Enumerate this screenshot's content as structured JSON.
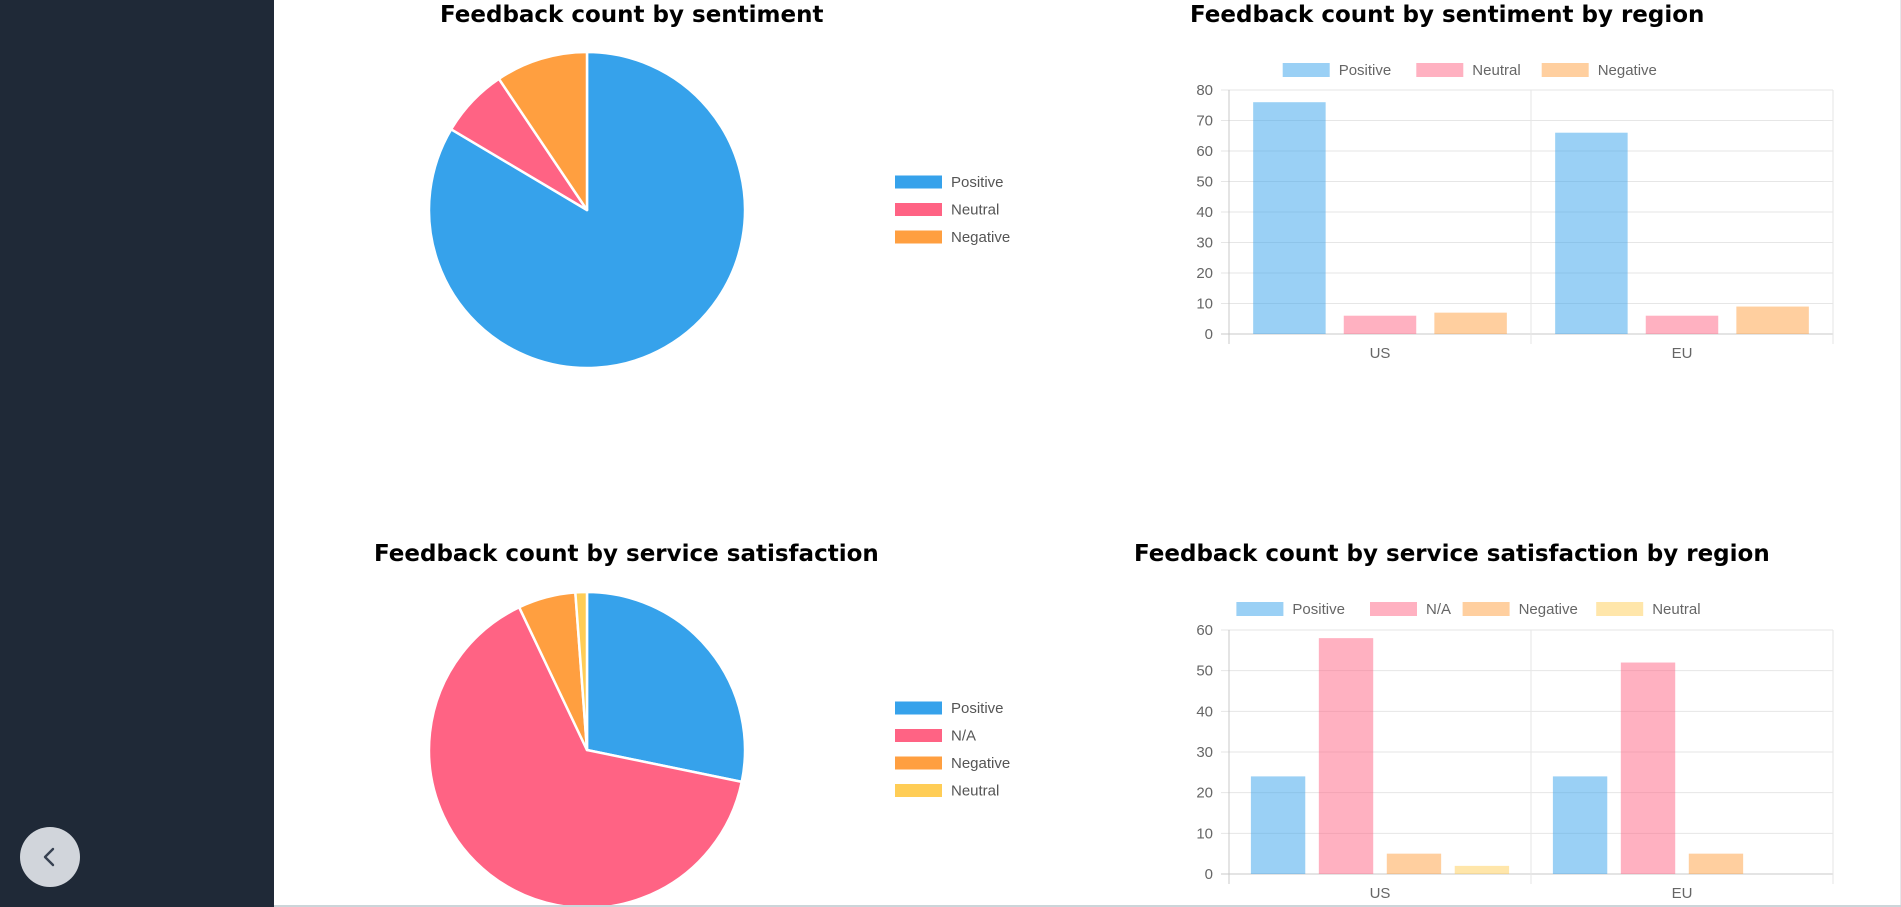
{
  "sidebar": {
    "collapse_icon": "chevron-left-icon"
  },
  "colors": {
    "blue": "#36a2eb",
    "pink": "#ff6384",
    "orange": "#ff9f40",
    "yellow": "#ffcd56",
    "sidebar": "#1f2937"
  },
  "chart_data": [
    {
      "id": "pie1",
      "type": "pie",
      "title": "Feedback count by sentiment",
      "labels": [
        "Positive",
        "Neutral",
        "Negative"
      ],
      "values": [
        142,
        12,
        16
      ],
      "colors": [
        "#36a2eb",
        "#ff6384",
        "#ff9f40"
      ],
      "legend": "right"
    },
    {
      "id": "bar1",
      "type": "bar",
      "title": "Feedback count by sentiment by region",
      "categories": [
        "US",
        "EU"
      ],
      "series": [
        {
          "name": "Positive",
          "values": [
            76,
            66
          ],
          "color": "#36a2eb"
        },
        {
          "name": "Neutral",
          "values": [
            6,
            6
          ],
          "color": "#ff6384"
        },
        {
          "name": "Negative",
          "values": [
            7,
            9
          ],
          "color": "#ff9f40"
        }
      ],
      "ylim": [
        0,
        80
      ],
      "yticks": [
        "0",
        "10",
        "20",
        "30",
        "40",
        "50",
        "60",
        "70",
        "80"
      ],
      "grid": true,
      "legend": "top"
    },
    {
      "id": "pie2",
      "type": "pie",
      "title": "Feedback count by service satisfaction",
      "labels": [
        "Positive",
        "N/A",
        "Negative",
        "Neutral"
      ],
      "values": [
        48,
        110,
        10,
        2
      ],
      "colors": [
        "#36a2eb",
        "#ff6384",
        "#ff9f40",
        "#ffcd56"
      ],
      "legend": "right"
    },
    {
      "id": "bar2",
      "type": "bar",
      "title": "Feedback count by service satisfaction by region",
      "categories": [
        "US",
        "EU"
      ],
      "series": [
        {
          "name": "Positive",
          "values": [
            24,
            24
          ],
          "color": "#36a2eb"
        },
        {
          "name": "N/A",
          "values": [
            58,
            52
          ],
          "color": "#ff6384"
        },
        {
          "name": "Negative",
          "values": [
            5,
            5
          ],
          "color": "#ff9f40"
        },
        {
          "name": "Neutral",
          "values": [
            2,
            0
          ],
          "color": "#ffcd56"
        }
      ],
      "ylim": [
        0,
        60
      ],
      "yticks": [
        "0",
        "10",
        "20",
        "30",
        "40",
        "50",
        "60"
      ],
      "grid": true,
      "legend": "top"
    }
  ]
}
